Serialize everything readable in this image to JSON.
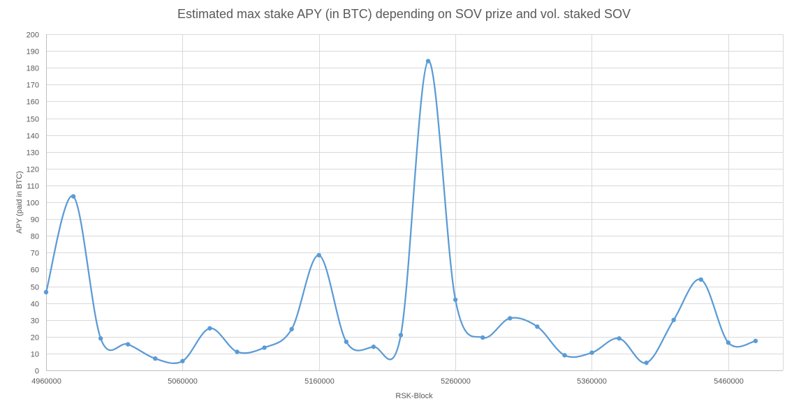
{
  "chart_data": {
    "type": "line",
    "title": "Estimated max stake APY (in BTC) depending on SOV prize and vol. staked SOV",
    "xlabel": "RSK-Block",
    "ylabel": "APY (paid in BTC)",
    "xlim": [
      4960000,
      5500000
    ],
    "ylim": [
      0,
      200
    ],
    "x_ticks": [
      4960000,
      5060000,
      5160000,
      5260000,
      5360000,
      5460000
    ],
    "y_ticks": [
      0,
      10,
      20,
      30,
      40,
      50,
      60,
      70,
      80,
      90,
      100,
      110,
      120,
      130,
      140,
      150,
      160,
      170,
      180,
      190,
      200
    ],
    "grid": true,
    "smooth": true,
    "series": [
      {
        "color": "#5b9bd5",
        "x": [
          4960000,
          4980000,
          5000000,
          5020000,
          5040000,
          5060000,
          5080000,
          5100000,
          5120000,
          5140000,
          5160000,
          5180000,
          5200000,
          5220000,
          5240000,
          5260000,
          5280000,
          5300000,
          5320000,
          5340000,
          5360000,
          5380000,
          5400000,
          5420000,
          5440000,
          5460000,
          5480000
        ],
        "values": [
          46.5,
          103.5,
          19,
          15.5,
          7,
          5.5,
          25,
          11,
          13.5,
          24.5,
          68.5,
          17,
          14,
          21,
          184,
          42,
          19.5,
          31,
          26,
          9,
          10.5,
          19,
          4.5,
          30,
          54,
          16.5,
          17.5
        ]
      }
    ]
  }
}
